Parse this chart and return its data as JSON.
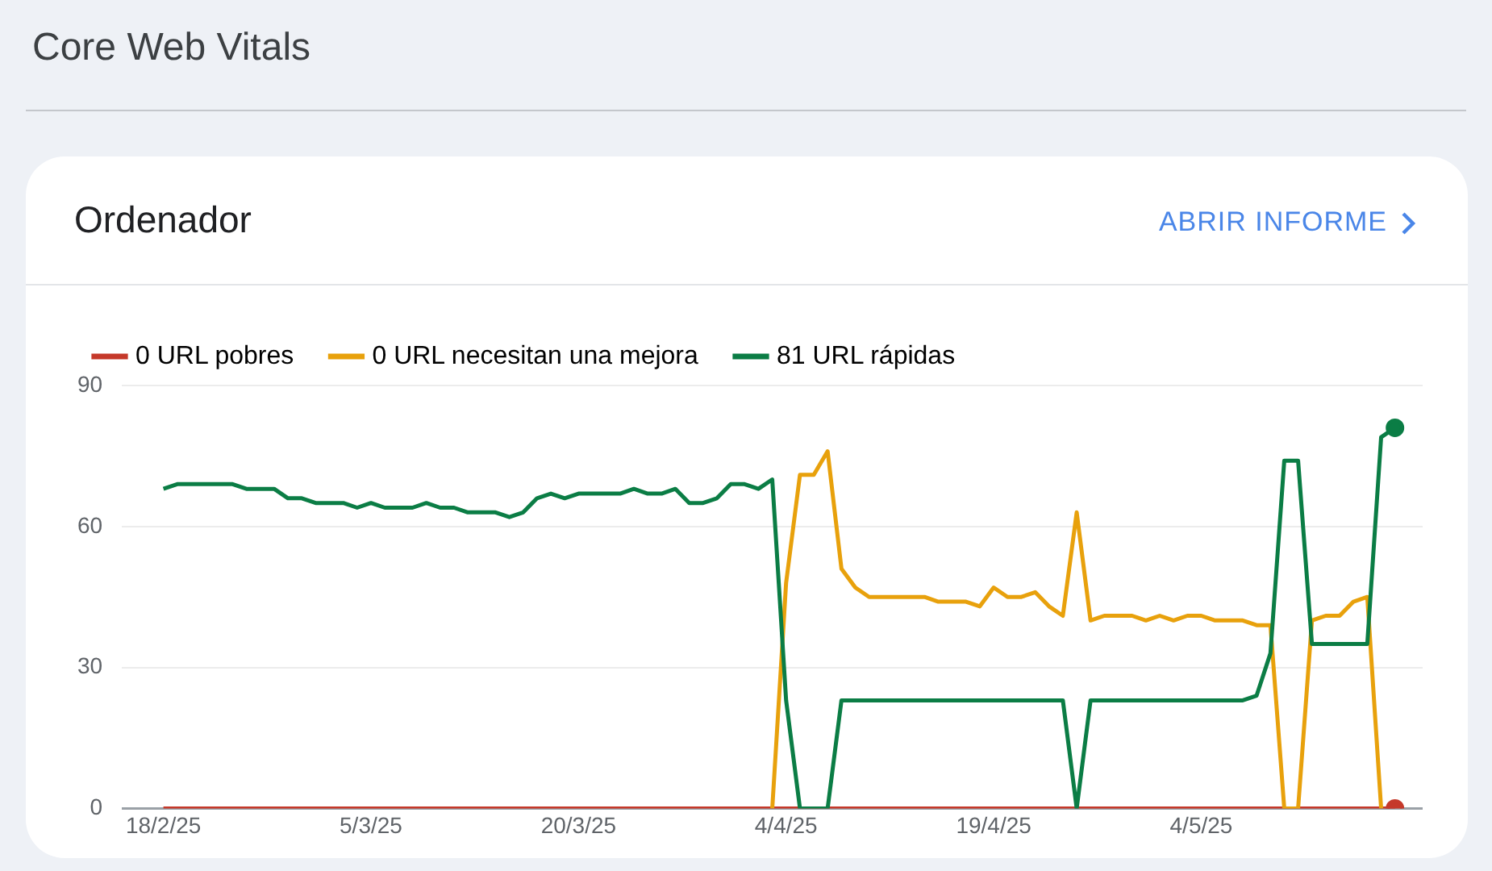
{
  "chart_data": {
    "type": "line",
    "title": "Core Web Vitals",
    "subtitle": "Ordenador",
    "annotations": [
      "ABRIR INFORME"
    ],
    "x": [
      "2025-02-18",
      "2025-02-19",
      "2025-02-20",
      "2025-02-21",
      "2025-02-22",
      "2025-02-23",
      "2025-02-24",
      "2025-02-25",
      "2025-02-26",
      "2025-02-27",
      "2025-02-28",
      "2025-03-01",
      "2025-03-02",
      "2025-03-03",
      "2025-03-04",
      "2025-03-05",
      "2025-03-06",
      "2025-03-07",
      "2025-03-08",
      "2025-03-09",
      "2025-03-10",
      "2025-03-11",
      "2025-03-12",
      "2025-03-13",
      "2025-03-14",
      "2025-03-15",
      "2025-03-16",
      "2025-03-17",
      "2025-03-18",
      "2025-03-19",
      "2025-03-20",
      "2025-03-21",
      "2025-03-22",
      "2025-03-23",
      "2025-03-24",
      "2025-03-25",
      "2025-03-26",
      "2025-03-27",
      "2025-03-28",
      "2025-03-29",
      "2025-03-30",
      "2025-03-31",
      "2025-04-01",
      "2025-04-02",
      "2025-04-03",
      "2025-04-04",
      "2025-04-05",
      "2025-04-06",
      "2025-04-07",
      "2025-04-08",
      "2025-04-09",
      "2025-04-10",
      "2025-04-11",
      "2025-04-12",
      "2025-04-13",
      "2025-04-14",
      "2025-04-15",
      "2025-04-16",
      "2025-04-17",
      "2025-04-18",
      "2025-04-19",
      "2025-04-20",
      "2025-04-21",
      "2025-04-22",
      "2025-04-23",
      "2025-04-24",
      "2025-04-25",
      "2025-04-26",
      "2025-04-27",
      "2025-04-28",
      "2025-04-29",
      "2025-04-30",
      "2025-05-01",
      "2025-05-02",
      "2025-05-03",
      "2025-05-04",
      "2025-05-05",
      "2025-05-06",
      "2025-05-07",
      "2025-05-08",
      "2025-05-09",
      "2025-05-10",
      "2025-05-11",
      "2025-05-12",
      "2025-05-13",
      "2025-05-14",
      "2025-05-15",
      "2025-05-16",
      "2025-05-17",
      "2025-05-18"
    ],
    "series": [
      {
        "name": "0 URL pobres",
        "color": "#c5392a",
        "values": [
          0,
          0,
          0,
          0,
          0,
          0,
          0,
          0,
          0,
          0,
          0,
          0,
          0,
          0,
          0,
          0,
          0,
          0,
          0,
          0,
          0,
          0,
          0,
          0,
          0,
          0,
          0,
          0,
          0,
          0,
          0,
          0,
          0,
          0,
          0,
          0,
          0,
          0,
          0,
          0,
          0,
          0,
          0,
          0,
          0,
          0,
          0,
          0,
          0,
          0,
          0,
          0,
          0,
          0,
          0,
          0,
          0,
          0,
          0,
          0,
          0,
          0,
          0,
          0,
          0,
          0,
          0,
          0,
          0,
          0,
          0,
          0,
          0,
          0,
          0,
          0,
          0,
          0,
          0,
          0,
          0,
          0,
          0,
          0,
          0,
          0,
          0,
          0,
          0,
          0
        ]
      },
      {
        "name": "0 URL necesitan una mejora",
        "color": "#e8a10c",
        "values": [
          null,
          null,
          null,
          null,
          null,
          null,
          null,
          null,
          null,
          null,
          null,
          null,
          null,
          null,
          null,
          null,
          null,
          null,
          null,
          null,
          null,
          null,
          null,
          null,
          null,
          null,
          null,
          null,
          null,
          null,
          null,
          null,
          null,
          null,
          null,
          null,
          null,
          null,
          null,
          null,
          null,
          null,
          null,
          null,
          0,
          48,
          71,
          71,
          76,
          51,
          47,
          45,
          45,
          45,
          45,
          45,
          44,
          44,
          44,
          43,
          47,
          45,
          45,
          46,
          43,
          41,
          63,
          40,
          41,
          41,
          41,
          40,
          41,
          40,
          41,
          41,
          40,
          40,
          40,
          39,
          39,
          0,
          0,
          40,
          41,
          41,
          44,
          45,
          0,
          null
        ]
      },
      {
        "name": "81 URL rápidas",
        "color": "#0b7d45",
        "values": [
          68,
          69,
          69,
          69,
          69,
          69,
          68,
          68,
          68,
          66,
          66,
          65,
          65,
          65,
          64,
          65,
          64,
          64,
          64,
          65,
          64,
          64,
          63,
          63,
          63,
          62,
          63,
          66,
          67,
          66,
          67,
          67,
          67,
          67,
          68,
          67,
          67,
          68,
          65,
          65,
          66,
          69,
          69,
          68,
          70,
          23,
          0,
          0,
          0,
          23,
          23,
          23,
          23,
          23,
          23,
          23,
          23,
          23,
          23,
          23,
          23,
          23,
          23,
          23,
          23,
          23,
          0,
          23,
          23,
          23,
          23,
          23,
          23,
          23,
          23,
          23,
          23,
          23,
          23,
          24,
          33,
          74,
          74,
          35,
          35,
          35,
          35,
          35,
          79,
          81
        ]
      }
    ],
    "xlim": [
      "2025-02-15",
      "2025-05-20"
    ],
    "xticks": [
      {
        "value": "2025-02-18",
        "label": "18/2/25"
      },
      {
        "value": "2025-03-05",
        "label": "5/3/25"
      },
      {
        "value": "2025-03-20",
        "label": "20/3/25"
      },
      {
        "value": "2025-04-04",
        "label": "4/4/25"
      },
      {
        "value": "2025-04-19",
        "label": "19/4/25"
      },
      {
        "value": "2025-05-04",
        "label": "4/5/25"
      }
    ],
    "ylim": [
      0,
      90
    ],
    "yticks": [
      0,
      30,
      60,
      90
    ],
    "grid": "y",
    "legend": "top left",
    "line_style": "solid"
  }
}
